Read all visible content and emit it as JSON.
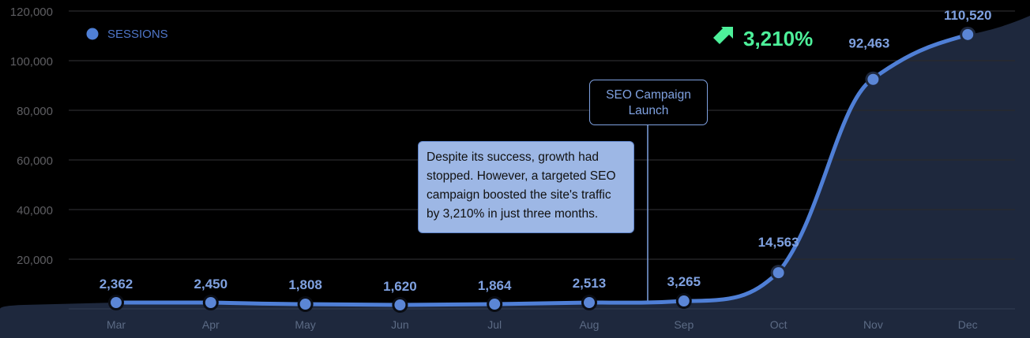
{
  "chart_data": {
    "type": "line",
    "title": "",
    "xlabel": "",
    "ylabel": "",
    "categories": [
      "Mar",
      "Apr",
      "May",
      "Jun",
      "Jul",
      "Aug",
      "Sep",
      "Oct",
      "Nov",
      "Dec"
    ],
    "series": [
      {
        "name": "SESSIONS",
        "values": [
          2362,
          2450,
          1808,
          1620,
          1864,
          2513,
          3265,
          14563,
          92463,
          110520
        ],
        "color": "#4f7fd6"
      }
    ],
    "data_labels": [
      "2,362",
      "2,450",
      "1,808",
      "1,620",
      "1,864",
      "2,513",
      "3,265",
      "14,563",
      "92,463",
      "110,520"
    ],
    "yticks": [
      "120,000",
      "100,000",
      "80,000",
      "60,000",
      "40,000",
      "20,000"
    ],
    "ylim": [
      0,
      120000
    ],
    "grid": true,
    "legend_position": "top-left",
    "annotations": [
      {
        "type": "callout",
        "text": "SEO Campaign Launch",
        "x_between": [
          "Aug",
          "Sep"
        ]
      },
      {
        "type": "note",
        "text": "Despite its success, growth had stopped. However, a targeted SEO campaign boosted the site's traffic by 3,210% in just three months."
      },
      {
        "type": "growth-badge",
        "text": "3,210%",
        "icon": "arrow-up-right-icon",
        "color": "#4df09a"
      }
    ]
  },
  "legend": {
    "label": "SESSIONS",
    "color": "#4f7fd6"
  },
  "growth": {
    "value": "3,210%",
    "color": "#4df09a"
  },
  "callout": {
    "line1": "SEO Campaign",
    "line2": "Launch"
  },
  "note": {
    "text": "Despite its success, growth had stopped. However, a targeted SEO campaign boosted the site's traffic by 3,210% in just three months."
  }
}
